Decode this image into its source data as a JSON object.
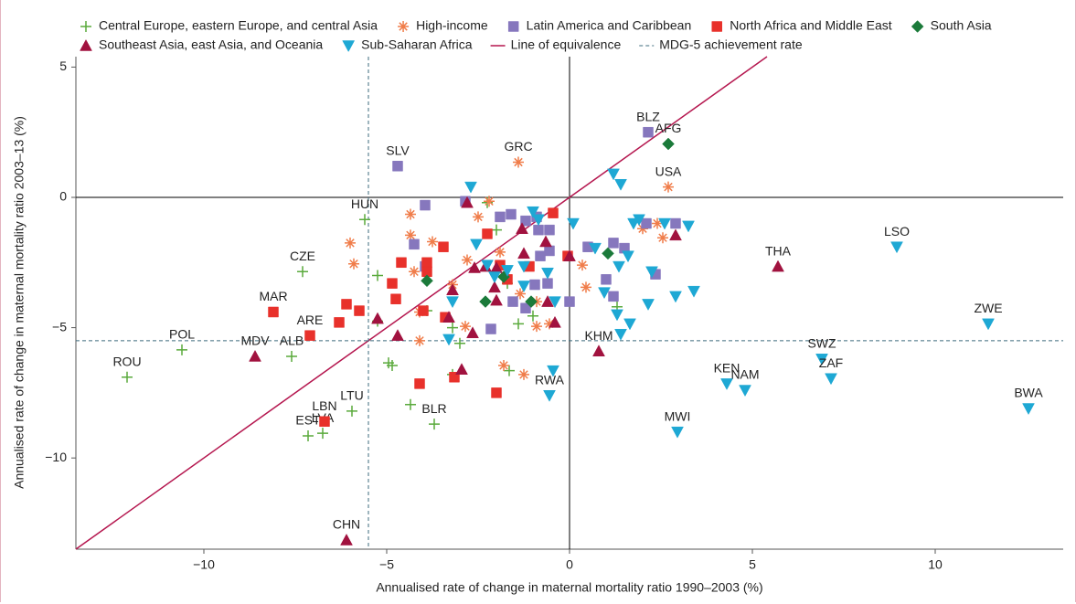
{
  "chart_data": {
    "type": "scatter",
    "x_label": "Annualised rate of change in maternal mortality ratio 1990–2003 (%)",
    "y_label": "Annualised rate of change in maternal mortality ratio 2003–13 (%)",
    "xlim": [
      -13.5,
      13.5
    ],
    "ylim": [
      -13.5,
      5.4
    ],
    "xticks": [
      {
        "value": -10,
        "label": "−10"
      },
      {
        "value": -5,
        "label": "−5"
      },
      0,
      5,
      10
    ],
    "yticks": [
      5,
      0,
      {
        "value": -5,
        "label": "−5"
      },
      {
        "value": -10,
        "label": "−10"
      }
    ],
    "reference_lines": [
      {
        "name": "Line of equivalence",
        "color": "#b5174f"
      },
      {
        "name": "MDG-5 achievement rate",
        "value": -5.5,
        "color": "#3d6b7d"
      }
    ],
    "series": [
      {
        "name": "Central Europe, eastern Europe, and central Asia",
        "color": "#5aaa3c",
        "marker": "plus",
        "x": [
          -12.1,
          -10.6,
          -7.6,
          -7.3,
          -5.6,
          -5.95,
          -7.15,
          -6.75,
          -3.7,
          -2.0,
          -2.25,
          -5.25,
          -3.9,
          -3.2,
          -3.0,
          -4.35,
          -4.95,
          -4.85,
          -1.4,
          -1.65,
          -3.2,
          -1.7,
          1.3,
          -1.0,
          -5.25
        ],
        "y": [
          -6.9,
          -5.85,
          -6.1,
          -2.85,
          -0.85,
          -8.2,
          -9.15,
          -9.05,
          -8.7,
          -1.25,
          -0.2,
          -3.0,
          -4.35,
          -5.0,
          -5.6,
          -7.95,
          -6.35,
          -6.45,
          -4.85,
          -6.65,
          -6.8,
          -3.3,
          -4.2,
          -4.55,
          -4.75
        ],
        "labels": [
          "ROU",
          "POL",
          "ALB",
          "CZE",
          "HUN",
          "LTU",
          "EST",
          "LVA",
          "BLR",
          null,
          null,
          null,
          null,
          null,
          null,
          null,
          null,
          null,
          null,
          null,
          null,
          null,
          null,
          null,
          null
        ]
      },
      {
        "name": "High-income",
        "color": "#f07d4a",
        "marker": "asterisk",
        "x": [
          -1.4,
          2.7,
          -4.35,
          -6.0,
          -5.9,
          -4.35,
          -3.75,
          -4.25,
          -3.2,
          -2.8,
          -2.5,
          -2.2,
          -1.9,
          -1.35,
          -0.9,
          -1.25,
          -1.8,
          -4.1,
          -4.1,
          -2.85,
          -0.9,
          -0.55,
          0.35,
          0.45,
          2.0,
          2.55,
          2.4
        ],
        "y": [
          1.35,
          0.4,
          -0.65,
          -1.75,
          -2.55,
          -1.45,
          -1.7,
          -2.85,
          -3.35,
          -2.4,
          -0.75,
          -0.15,
          -2.1,
          -3.7,
          -4.0,
          -6.8,
          -6.45,
          -5.5,
          -4.4,
          -4.95,
          -4.95,
          -4.85,
          -2.6,
          -3.45,
          -1.2,
          -1.55,
          -1.0
        ],
        "labels": [
          "GRC",
          "USA",
          null,
          null,
          null,
          null,
          null,
          null,
          null,
          null,
          null,
          null,
          null,
          null,
          null,
          null,
          null,
          null,
          null,
          null,
          null,
          null,
          null,
          null,
          null,
          null,
          null
        ]
      },
      {
        "name": "Latin America and Caribbean",
        "color": "#8677bd",
        "marker": "square",
        "x": [
          -4.7,
          2.15,
          -3.95,
          -4.25,
          -3.95,
          -2.85,
          -1.9,
          -1.6,
          -1.2,
          -0.9,
          -0.85,
          -0.55,
          -0.55,
          -0.8,
          -0.95,
          -0.6,
          -1.55,
          -1.2,
          -2.15,
          0.0,
          0.5,
          1.2,
          1.5,
          2.1,
          2.9,
          2.35,
          1.0,
          1.2
        ],
        "y": [
          1.2,
          2.5,
          -0.3,
          -1.8,
          -2.65,
          -0.15,
          -0.75,
          -0.65,
          -0.9,
          -0.75,
          -1.25,
          -1.25,
          -2.05,
          -2.25,
          -3.35,
          -3.3,
          -4.0,
          -4.25,
          -5.05,
          -4.0,
          -1.9,
          -1.75,
          -1.95,
          -1.0,
          -1.0,
          -2.95,
          -3.15,
          -3.8
        ],
        "labels": [
          "SLV",
          "BLZ",
          null,
          null,
          null,
          null,
          null,
          null,
          null,
          null,
          null,
          null,
          null,
          null,
          null,
          null,
          null,
          null,
          null,
          null,
          null,
          null,
          null,
          null,
          null,
          null,
          null,
          null
        ]
      },
      {
        "name": "North Africa and Middle East",
        "color": "#e8312b",
        "marker": "square",
        "x": [
          -8.1,
          -7.1,
          -6.7,
          -3.9,
          -4.6,
          -4.75,
          -4.85,
          -3.9,
          -3.45,
          -4.0,
          -3.4,
          -6.1,
          -6.3,
          -5.75,
          -4.1,
          -2.25,
          -1.9,
          -1.7,
          -1.1,
          -0.45,
          -0.05,
          -2.0,
          -3.15
        ],
        "y": [
          -4.4,
          -5.3,
          -8.6,
          -2.5,
          -2.5,
          -3.9,
          -3.3,
          -2.85,
          -1.9,
          -4.35,
          -4.6,
          -4.1,
          -4.8,
          -4.35,
          -7.15,
          -1.4,
          -2.6,
          -3.15,
          -2.65,
          -0.6,
          -2.25,
          -7.5,
          -6.9
        ],
        "labels": [
          "MAR",
          "ARE",
          "LBN",
          null,
          null,
          null,
          null,
          null,
          null,
          null,
          null,
          null,
          null,
          null,
          null,
          null,
          null,
          null,
          null,
          null,
          null,
          null,
          null
        ]
      },
      {
        "name": "South Asia",
        "color": "#1b7a3a",
        "marker": "diamond",
        "x": [
          2.7,
          -3.9,
          -2.3,
          -1.8,
          -1.05,
          1.05
        ],
        "y": [
          2.05,
          -3.2,
          -4.0,
          -3.05,
          -4.0,
          -2.15
        ],
        "labels": [
          "AFG",
          null,
          null,
          null,
          null,
          null
        ]
      },
      {
        "name": "Southeast Asia, east Asia, and Oceania",
        "color": "#a1123f",
        "marker": "triangle-up",
        "x": [
          -8.6,
          5.7,
          0.8,
          -6.1,
          -5.25,
          -4.7,
          -3.3,
          -3.2,
          -2.6,
          -2.3,
          -2.0,
          -2.0,
          -2.05,
          -1.25,
          -0.65,
          -0.6,
          -0.4,
          0.0,
          -2.65,
          -2.95,
          -2.8,
          2.9,
          -1.3
        ],
        "y": [
          -6.1,
          -2.65,
          -5.9,
          -13.15,
          -4.65,
          -5.3,
          -4.6,
          -3.55,
          -2.7,
          -2.65,
          -2.7,
          -3.95,
          -3.45,
          -2.15,
          -1.7,
          -4.0,
          -4.8,
          -2.25,
          -5.2,
          -6.6,
          -0.2,
          -1.45,
          -1.2
        ],
        "labels": [
          "MDV",
          "THA",
          "KHM",
          "CHN",
          null,
          null,
          null,
          null,
          null,
          null,
          null,
          null,
          null,
          null,
          null,
          null,
          null,
          null,
          null,
          null,
          null,
          null,
          null
        ]
      },
      {
        "name": "Sub-Saharan Africa",
        "color": "#1ea8d4",
        "marker": "triangle-down",
        "x": [
          8.95,
          11.45,
          6.9,
          7.15,
          4.3,
          4.8,
          12.55,
          2.95,
          -0.55,
          -2.7,
          -3.2,
          -2.55,
          -2.25,
          -2.05,
          -1.7,
          -1.25,
          -1.0,
          -0.85,
          -0.6,
          -0.4,
          0.1,
          1.2,
          1.4,
          0.7,
          0.95,
          1.3,
          1.65,
          1.4,
          1.35,
          1.6,
          1.75,
          1.9,
          2.25,
          2.15,
          2.9,
          2.6,
          3.25,
          3.4,
          -1.25,
          -3.3,
          -0.45
        ],
        "y": [
          -1.9,
          -4.85,
          -6.2,
          -6.95,
          -7.15,
          -7.4,
          -8.1,
          -9.0,
          -7.6,
          0.4,
          -4.0,
          -1.8,
          -2.6,
          -3.05,
          -2.8,
          -2.65,
          -0.55,
          -0.85,
          -2.9,
          -4.0,
          -1.0,
          0.9,
          0.5,
          -1.95,
          -3.65,
          -4.5,
          -4.85,
          -5.25,
          -2.65,
          -2.25,
          -1.0,
          -0.85,
          -2.85,
          -4.1,
          -3.8,
          -1.0,
          -1.1,
          -3.6,
          -3.4,
          -5.45,
          -6.65
        ],
        "labels": [
          "LSO",
          "ZWE",
          "SWZ",
          "ZAF",
          "KEN",
          "NAM",
          "BWA",
          "MWI",
          "RWA",
          null,
          null,
          null,
          null,
          null,
          null,
          null,
          null,
          null,
          null,
          null,
          null,
          null,
          null,
          null,
          null,
          null,
          null,
          null,
          null,
          null,
          null,
          null,
          null,
          null,
          null,
          null,
          null,
          null,
          null,
          null,
          null
        ]
      }
    ]
  }
}
